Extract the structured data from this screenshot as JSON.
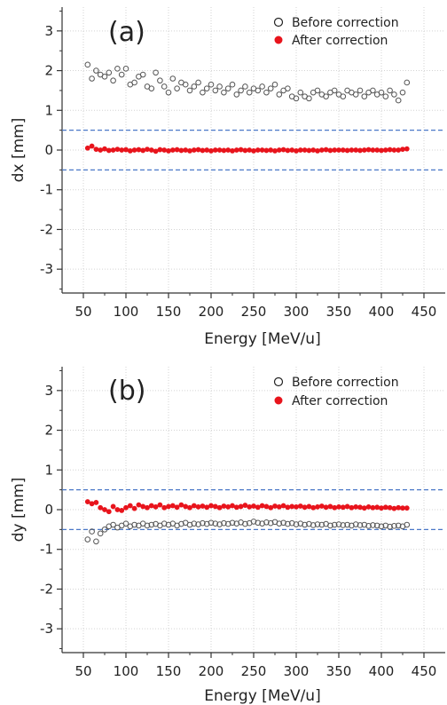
{
  "chart_data": [
    {
      "type": "scatter",
      "panel_label": "(a)",
      "xlabel": "Energy [MeV/u]",
      "ylabel": "dx [mm]",
      "xlim": [
        25,
        475
      ],
      "ylim": [
        -3.6,
        3.6
      ],
      "xticks": [
        50,
        100,
        150,
        200,
        250,
        300,
        350,
        400,
        450
      ],
      "yticks": [
        -3,
        -2,
        -1,
        0,
        1,
        2,
        3
      ],
      "grid": true,
      "legend_position": "top-right",
      "reference_lines": [
        0.5,
        -0.5
      ],
      "reference_line_color": "#4a78c8",
      "series": [
        {
          "name": "Before correction",
          "marker": "open-circle",
          "color": "#555555",
          "x": [
            55,
            60,
            65,
            70,
            75,
            80,
            85,
            90,
            95,
            100,
            105,
            110,
            115,
            120,
            125,
            130,
            135,
            140,
            145,
            150,
            155,
            160,
            165,
            170,
            175,
            180,
            185,
            190,
            195,
            200,
            205,
            210,
            215,
            220,
            225,
            230,
            235,
            240,
            245,
            250,
            255,
            260,
            265,
            270,
            275,
            280,
            285,
            290,
            295,
            300,
            305,
            310,
            315,
            320,
            325,
            330,
            335,
            340,
            345,
            350,
            355,
            360,
            365,
            370,
            375,
            380,
            385,
            390,
            395,
            400,
            405,
            410,
            415,
            420,
            425,
            430
          ],
          "y": [
            2.15,
            1.8,
            2.0,
            1.9,
            1.85,
            1.95,
            1.75,
            2.05,
            1.9,
            2.05,
            1.65,
            1.7,
            1.85,
            1.9,
            1.6,
            1.55,
            1.95,
            1.75,
            1.6,
            1.45,
            1.8,
            1.55,
            1.7,
            1.65,
            1.5,
            1.6,
            1.7,
            1.45,
            1.55,
            1.65,
            1.5,
            1.6,
            1.45,
            1.55,
            1.65,
            1.4,
            1.5,
            1.6,
            1.45,
            1.55,
            1.5,
            1.6,
            1.45,
            1.55,
            1.65,
            1.4,
            1.5,
            1.55,
            1.35,
            1.3,
            1.45,
            1.35,
            1.3,
            1.45,
            1.5,
            1.4,
            1.35,
            1.45,
            1.5,
            1.4,
            1.35,
            1.5,
            1.45,
            1.4,
            1.5,
            1.35,
            1.45,
            1.5,
            1.4,
            1.45,
            1.35,
            1.5,
            1.4,
            1.25,
            1.45,
            1.7
          ]
        },
        {
          "name": "After correction",
          "marker": "filled-circle",
          "color": "#e8141c",
          "x": [
            55,
            60,
            65,
            70,
            75,
            80,
            85,
            90,
            95,
            100,
            105,
            110,
            115,
            120,
            125,
            130,
            135,
            140,
            145,
            150,
            155,
            160,
            165,
            170,
            175,
            180,
            185,
            190,
            195,
            200,
            205,
            210,
            215,
            220,
            225,
            230,
            235,
            240,
            245,
            250,
            255,
            260,
            265,
            270,
            275,
            280,
            285,
            290,
            295,
            300,
            305,
            310,
            315,
            320,
            325,
            330,
            335,
            340,
            345,
            350,
            355,
            360,
            365,
            370,
            375,
            380,
            385,
            390,
            395,
            400,
            405,
            410,
            415,
            420,
            425,
            430
          ],
          "y": [
            0.05,
            0.1,
            0.02,
            0.0,
            0.03,
            -0.01,
            0.0,
            0.02,
            0.0,
            0.01,
            -0.02,
            0.0,
            0.01,
            -0.01,
            0.02,
            0.0,
            -0.03,
            0.01,
            0.0,
            -0.02,
            0.0,
            0.01,
            -0.01,
            0.0,
            -0.02,
            0.0,
            0.01,
            -0.01,
            0.0,
            -0.02,
            0.0,
            0.0,
            -0.01,
            0.0,
            -0.02,
            0.0,
            0.01,
            -0.01,
            0.0,
            -0.02,
            0.0,
            0.0,
            -0.01,
            0.0,
            -0.02,
            0.0,
            0.01,
            -0.01,
            0.0,
            -0.02,
            0.0,
            0.0,
            -0.01,
            0.0,
            -0.02,
            0.0,
            0.01,
            -0.01,
            0.0,
            0.0,
            0.0,
            -0.01,
            0.0,
            0.0,
            -0.01,
            0.0,
            0.01,
            0.0,
            0.0,
            -0.01,
            0.0,
            0.01,
            0.0,
            0.0,
            0.02,
            0.03
          ]
        }
      ]
    },
    {
      "type": "scatter",
      "panel_label": "(b)",
      "xlabel": "Energy [MeV/u]",
      "ylabel": "dy [mm]",
      "xlim": [
        25,
        475
      ],
      "ylim": [
        -3.6,
        3.6
      ],
      "xticks": [
        50,
        100,
        150,
        200,
        250,
        300,
        350,
        400,
        450
      ],
      "yticks": [
        -3,
        -2,
        -1,
        0,
        1,
        2,
        3
      ],
      "grid": true,
      "legend_position": "top-right",
      "reference_lines": [
        0.5,
        -0.5
      ],
      "reference_line_color": "#4a78c8",
      "series": [
        {
          "name": "Before correction",
          "marker": "open-circle",
          "color": "#555555",
          "x": [
            55,
            60,
            65,
            70,
            75,
            80,
            85,
            90,
            95,
            100,
            105,
            110,
            115,
            120,
            125,
            130,
            135,
            140,
            145,
            150,
            155,
            160,
            165,
            170,
            175,
            180,
            185,
            190,
            195,
            200,
            205,
            210,
            215,
            220,
            225,
            230,
            235,
            240,
            245,
            250,
            255,
            260,
            265,
            270,
            275,
            280,
            285,
            290,
            295,
            300,
            305,
            310,
            315,
            320,
            325,
            330,
            335,
            340,
            345,
            350,
            355,
            360,
            365,
            370,
            375,
            380,
            385,
            390,
            395,
            400,
            405,
            410,
            415,
            420,
            425,
            430
          ],
          "y": [
            -0.75,
            -0.55,
            -0.8,
            -0.6,
            -0.5,
            -0.42,
            -0.38,
            -0.45,
            -0.4,
            -0.35,
            -0.42,
            -0.38,
            -0.4,
            -0.35,
            -0.4,
            -0.38,
            -0.36,
            -0.4,
            -0.35,
            -0.38,
            -0.35,
            -0.4,
            -0.36,
            -0.33,
            -0.38,
            -0.35,
            -0.37,
            -0.34,
            -0.36,
            -0.33,
            -0.35,
            -0.37,
            -0.34,
            -0.36,
            -0.33,
            -0.35,
            -0.32,
            -0.36,
            -0.34,
            -0.3,
            -0.33,
            -0.35,
            -0.32,
            -0.34,
            -0.31,
            -0.35,
            -0.33,
            -0.36,
            -0.34,
            -0.37,
            -0.35,
            -0.38,
            -0.36,
            -0.39,
            -0.37,
            -0.38,
            -0.36,
            -0.4,
            -0.38,
            -0.37,
            -0.39,
            -0.38,
            -0.4,
            -0.37,
            -0.39,
            -0.38,
            -0.41,
            -0.39,
            -0.4,
            -0.42,
            -0.4,
            -0.43,
            -0.41,
            -0.4,
            -0.42,
            -0.38
          ]
        },
        {
          "name": "After correction",
          "marker": "filled-circle",
          "color": "#e8141c",
          "x": [
            55,
            60,
            65,
            70,
            75,
            80,
            85,
            90,
            95,
            100,
            105,
            110,
            115,
            120,
            125,
            130,
            135,
            140,
            145,
            150,
            155,
            160,
            165,
            170,
            175,
            180,
            185,
            190,
            195,
            200,
            205,
            210,
            215,
            220,
            225,
            230,
            235,
            240,
            245,
            250,
            255,
            260,
            265,
            270,
            275,
            280,
            285,
            290,
            295,
            300,
            305,
            310,
            315,
            320,
            325,
            330,
            335,
            340,
            345,
            350,
            355,
            360,
            365,
            370,
            375,
            380,
            385,
            390,
            395,
            400,
            405,
            410,
            415,
            420,
            425,
            430
          ],
          "y": [
            0.2,
            0.15,
            0.18,
            0.05,
            0.0,
            -0.05,
            0.08,
            0.0,
            -0.02,
            0.05,
            0.1,
            0.03,
            0.12,
            0.08,
            0.05,
            0.1,
            0.07,
            0.12,
            0.05,
            0.08,
            0.1,
            0.06,
            0.12,
            0.08,
            0.05,
            0.1,
            0.07,
            0.09,
            0.06,
            0.1,
            0.08,
            0.05,
            0.09,
            0.07,
            0.1,
            0.06,
            0.08,
            0.11,
            0.07,
            0.09,
            0.06,
            0.1,
            0.08,
            0.05,
            0.09,
            0.07,
            0.1,
            0.06,
            0.08,
            0.07,
            0.09,
            0.06,
            0.08,
            0.05,
            0.07,
            0.09,
            0.06,
            0.08,
            0.05,
            0.07,
            0.06,
            0.08,
            0.05,
            0.07,
            0.06,
            0.04,
            0.07,
            0.05,
            0.06,
            0.04,
            0.06,
            0.05,
            0.03,
            0.05,
            0.04,
            0.04
          ]
        }
      ]
    }
  ]
}
